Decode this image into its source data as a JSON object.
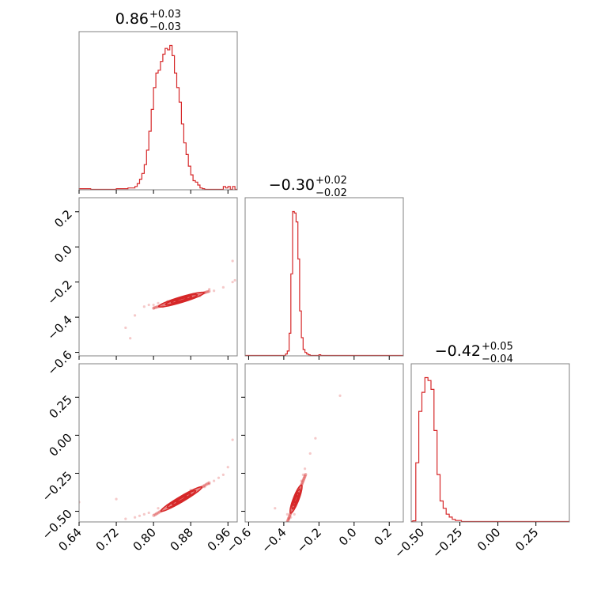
{
  "chart_data": {
    "type": "corner",
    "color": "#d62728",
    "grid": true,
    "parameters": [
      {
        "range": [
          0.64,
          0.98
        ],
        "ticks": [
          0.64,
          0.72,
          0.8,
          0.88,
          0.96
        ],
        "tick_labels": [
          "0.64",
          "0.72",
          "0.80",
          "0.88",
          "0.96"
        ]
      },
      {
        "range": [
          -0.62,
          0.28
        ],
        "ticks": [
          -0.6,
          -0.4,
          -0.2,
          0.0,
          0.2
        ],
        "tick_labels": [
          "−0.6",
          "−0.4",
          "−0.2",
          "0.0",
          "0.2"
        ]
      },
      {
        "range": [
          -0.57,
          0.47
        ],
        "ticks": [
          -0.5,
          -0.25,
          0.0,
          0.25
        ],
        "tick_labels": [
          "−0.50",
          "−0.25",
          "0.00",
          "0.25"
        ]
      }
    ],
    "titles": [
      {
        "value": "0.86",
        "plus": "+0.03",
        "minus": "−0.03"
      },
      {
        "value": "−0.30",
        "plus": "+0.02",
        "minus": "−0.02"
      },
      {
        "value": "−0.42",
        "plus": "+0.05",
        "minus": "−0.04"
      }
    ],
    "histograms": [
      {
        "bin_width": 0.005,
        "edges": [
          0.64,
          0.98
        ],
        "bins": [
          [
            0.64,
            0.005
          ],
          [
            0.665,
            0.0
          ],
          [
            0.72,
            0.005
          ],
          [
            0.745,
            0.01
          ],
          [
            0.76,
            0.02
          ],
          [
            0.765,
            0.04
          ],
          [
            0.77,
            0.07
          ],
          [
            0.775,
            0.11
          ],
          [
            0.78,
            0.17
          ],
          [
            0.785,
            0.27
          ],
          [
            0.79,
            0.4
          ],
          [
            0.795,
            0.55
          ],
          [
            0.8,
            0.7
          ],
          [
            0.805,
            0.8
          ],
          [
            0.81,
            0.82
          ],
          [
            0.815,
            0.88
          ],
          [
            0.82,
            0.93
          ],
          [
            0.825,
            0.97
          ],
          [
            0.83,
            0.96
          ],
          [
            0.835,
            0.99
          ],
          [
            0.84,
            0.92
          ],
          [
            0.845,
            0.8
          ],
          [
            0.85,
            0.7
          ],
          [
            0.855,
            0.6
          ],
          [
            0.86,
            0.45
          ],
          [
            0.865,
            0.32
          ],
          [
            0.87,
            0.24
          ],
          [
            0.875,
            0.16
          ],
          [
            0.88,
            0.1
          ],
          [
            0.885,
            0.06
          ],
          [
            0.89,
            0.05
          ],
          [
            0.895,
            0.03
          ],
          [
            0.9,
            0.01
          ],
          [
            0.905,
            0.005
          ],
          [
            0.91,
            0.0
          ],
          [
            0.945,
            0.0
          ],
          [
            0.95,
            0.02
          ],
          [
            0.955,
            0.01
          ],
          [
            0.96,
            0.02
          ],
          [
            0.965,
            0.0
          ],
          [
            0.97,
            0.02
          ],
          [
            0.975,
            0.0
          ]
        ]
      },
      {
        "bin_width": 0.01,
        "edges": [
          -0.62,
          0.28
        ],
        "bins": [
          [
            -0.62,
            0.0
          ],
          [
            -0.39,
            0.01
          ],
          [
            -0.38,
            0.03
          ],
          [
            -0.37,
            0.15
          ],
          [
            -0.36,
            0.55
          ],
          [
            -0.35,
            0.97
          ],
          [
            -0.34,
            0.96
          ],
          [
            -0.33,
            0.9
          ],
          [
            -0.32,
            0.65
          ],
          [
            -0.31,
            0.3
          ],
          [
            -0.3,
            0.12
          ],
          [
            -0.29,
            0.04
          ],
          [
            -0.28,
            0.02
          ],
          [
            -0.27,
            0.01
          ],
          [
            -0.26,
            0.005
          ],
          [
            -0.25,
            0.0
          ],
          [
            -0.2,
            0.005
          ],
          [
            -0.19,
            0.0
          ]
        ]
      },
      {
        "bin_width": 0.02,
        "edges": [
          -0.57,
          0.47
        ],
        "bins": [
          [
            -0.57,
            0.0
          ],
          [
            -0.56,
            0.005
          ],
          [
            -0.54,
            0.4
          ],
          [
            -0.52,
            0.75
          ],
          [
            -0.5,
            0.88
          ],
          [
            -0.48,
            0.98
          ],
          [
            -0.46,
            0.96
          ],
          [
            -0.44,
            0.9
          ],
          [
            -0.42,
            0.62
          ],
          [
            -0.4,
            0.32
          ],
          [
            -0.38,
            0.14
          ],
          [
            -0.36,
            0.09
          ],
          [
            -0.34,
            0.05
          ],
          [
            -0.32,
            0.03
          ],
          [
            -0.3,
            0.015
          ],
          [
            -0.28,
            0.007
          ],
          [
            -0.26,
            0.007
          ],
          [
            -0.24,
            0.0
          ]
        ]
      }
    ],
    "scatter_panels": [
      {
        "x_param": 0,
        "y_param": 1,
        "line": {
          "x0": 0.86,
          "y0": -0.3,
          "slope": 0.8
        },
        "points": [
          [
            0.76,
            -0.39
          ],
          [
            0.75,
            -0.52
          ],
          [
            0.74,
            -0.46
          ],
          [
            0.78,
            -0.34
          ],
          [
            0.79,
            -0.33
          ],
          [
            0.8,
            -0.33
          ],
          [
            0.81,
            -0.32
          ],
          [
            0.83,
            -0.31
          ],
          [
            0.85,
            -0.3
          ],
          [
            0.87,
            -0.29
          ],
          [
            0.89,
            -0.27
          ],
          [
            0.91,
            -0.26
          ],
          [
            0.93,
            -0.25
          ],
          [
            0.95,
            -0.23
          ],
          [
            0.97,
            -0.2
          ],
          [
            0.975,
            -0.19
          ],
          [
            0.97,
            -0.08
          ],
          [
            0.8,
            -0.35
          ],
          [
            0.82,
            -0.34
          ],
          [
            0.88,
            -0.28
          ],
          [
            0.9,
            -0.28
          ],
          [
            0.92,
            -0.24
          ]
        ]
      },
      {
        "x_param": 0,
        "y_param": 2,
        "line": {
          "x0": 0.86,
          "y0": -0.42,
          "slope": 1.8
        },
        "points": [
          [
            0.64,
            -0.44
          ],
          [
            0.72,
            -0.42
          ],
          [
            0.74,
            -0.55
          ],
          [
            0.76,
            -0.54
          ],
          [
            0.77,
            -0.53
          ],
          [
            0.79,
            -0.51
          ],
          [
            0.81,
            -0.48
          ],
          [
            0.83,
            -0.46
          ],
          [
            0.85,
            -0.44
          ],
          [
            0.87,
            -0.4
          ],
          [
            0.89,
            -0.37
          ],
          [
            0.91,
            -0.34
          ],
          [
            0.93,
            -0.3
          ],
          [
            0.95,
            -0.26
          ],
          [
            0.96,
            -0.21
          ],
          [
            0.97,
            -0.03
          ],
          [
            0.88,
            -0.36
          ],
          [
            0.92,
            -0.32
          ],
          [
            0.78,
            -0.52
          ],
          [
            0.94,
            -0.28
          ]
        ]
      },
      {
        "x_param": 1,
        "y_param": 2,
        "line": {
          "x0": -0.33,
          "y0": -0.42,
          "slope": 3.0
        },
        "points": [
          [
            -0.37,
            -0.55
          ],
          [
            -0.38,
            -0.52
          ],
          [
            -0.36,
            -0.5
          ],
          [
            -0.35,
            -0.48
          ],
          [
            -0.34,
            -0.45
          ],
          [
            -0.33,
            -0.42
          ],
          [
            -0.32,
            -0.38
          ],
          [
            -0.31,
            -0.35
          ],
          [
            -0.3,
            -0.3
          ],
          [
            -0.29,
            -0.26
          ],
          [
            -0.28,
            -0.22
          ],
          [
            -0.25,
            -0.12
          ],
          [
            -0.22,
            -0.02
          ],
          [
            -0.08,
            0.26
          ],
          [
            -0.45,
            -0.48
          ],
          [
            -0.36,
            -0.54
          ],
          [
            -0.34,
            -0.52
          ]
        ]
      }
    ]
  }
}
